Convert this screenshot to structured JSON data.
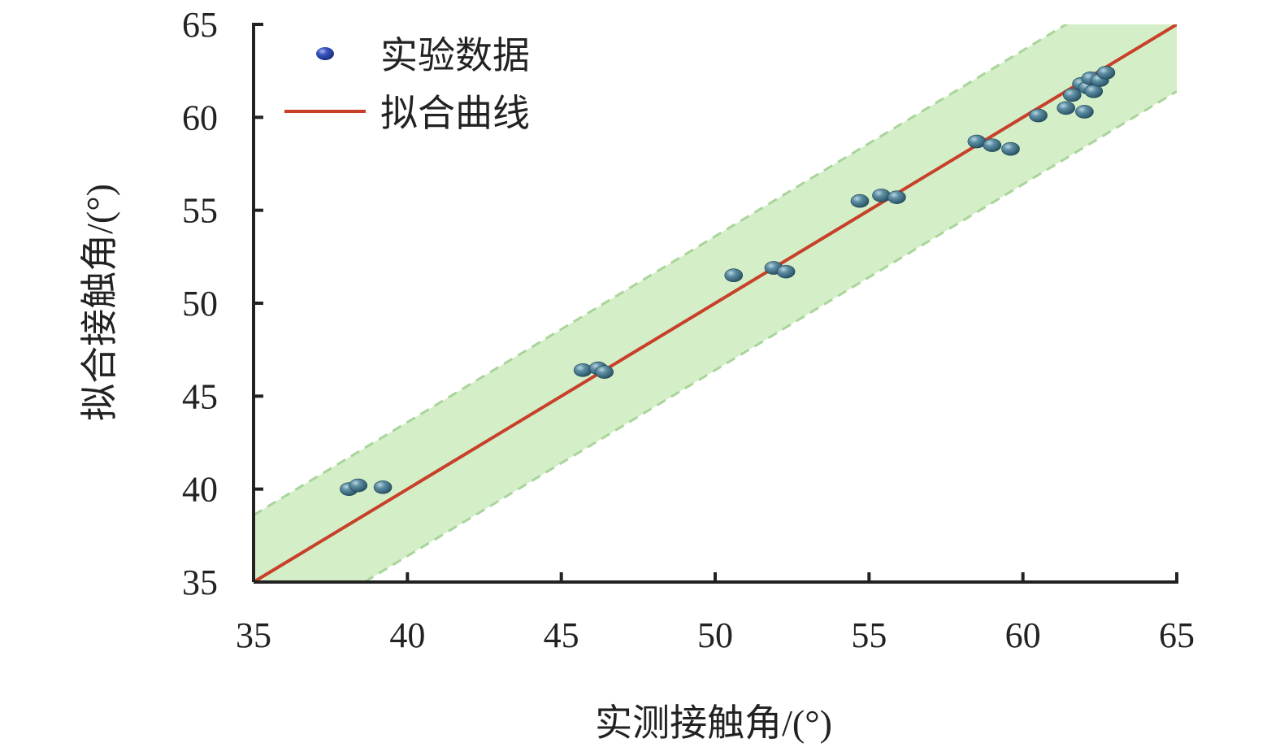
{
  "chart_data": {
    "type": "scatter",
    "title": "",
    "xlabel": "实测接触角/(°)",
    "ylabel": "拟合接触角/(°)",
    "xlim": [
      35,
      65
    ],
    "ylim": [
      35,
      65
    ],
    "xticks": [
      35,
      40,
      45,
      50,
      55,
      60,
      65
    ],
    "yticks": [
      35,
      40,
      45,
      50,
      55,
      60,
      65
    ],
    "grid": false,
    "legend_position": "top-left",
    "series": [
      {
        "name": "实验数据",
        "type": "scatter",
        "color": "#3f6f86",
        "points": [
          [
            38.1,
            40.0
          ],
          [
            38.4,
            40.2
          ],
          [
            39.2,
            40.1
          ],
          [
            45.7,
            46.4
          ],
          [
            46.2,
            46.5
          ],
          [
            46.4,
            46.3
          ],
          [
            50.6,
            51.5
          ],
          [
            51.9,
            51.9
          ],
          [
            52.3,
            51.7
          ],
          [
            54.7,
            55.5
          ],
          [
            55.4,
            55.8
          ],
          [
            55.9,
            55.7
          ],
          [
            58.5,
            58.7
          ],
          [
            59.0,
            58.5
          ],
          [
            59.6,
            58.3
          ],
          [
            60.5,
            60.1
          ],
          [
            61.4,
            60.5
          ],
          [
            61.6,
            61.2
          ],
          [
            61.9,
            61.8
          ],
          [
            62.0,
            60.3
          ],
          [
            62.1,
            61.6
          ],
          [
            62.2,
            62.1
          ],
          [
            62.3,
            61.4
          ],
          [
            62.5,
            62.0
          ],
          [
            62.7,
            62.4
          ]
        ]
      },
      {
        "name": "拟合曲线",
        "type": "line",
        "color": "#c8402a",
        "points": [
          [
            35,
            35
          ],
          [
            65,
            65
          ]
        ]
      }
    ],
    "confidence_band": {
      "color": "#d4efc8",
      "edge_color": "#a9d59a",
      "upper": [
        [
          35,
          38.6
        ],
        [
          65,
          68.6
        ]
      ],
      "lower": [
        [
          35,
          31.4
        ],
        [
          65,
          61.4
        ]
      ]
    }
  }
}
